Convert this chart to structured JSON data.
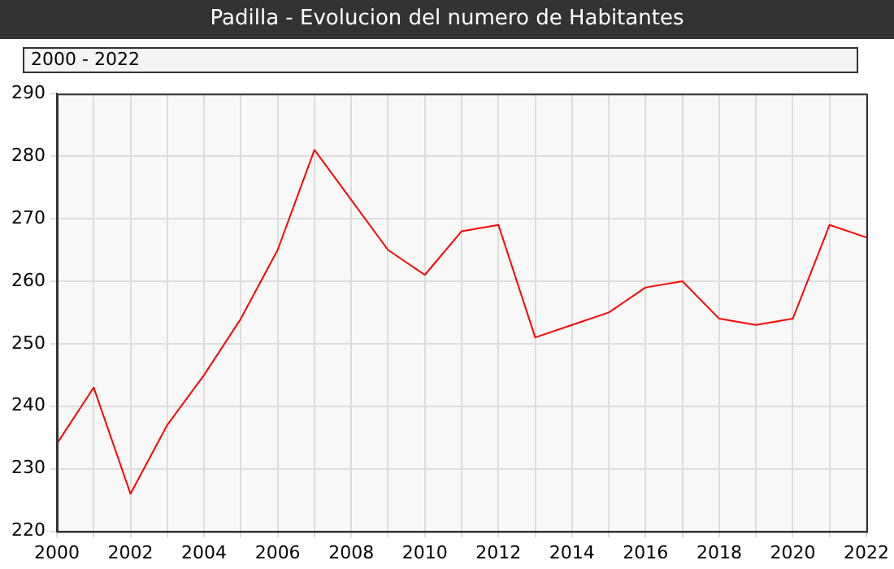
{
  "chart_data": {
    "type": "line",
    "title": "Padilla - Evolucion del numero de Habitantes",
    "subtitle": "2000 - 2022",
    "x": [
      2000,
      2001,
      2002,
      2003,
      2004,
      2005,
      2006,
      2007,
      2008,
      2009,
      2010,
      2011,
      2012,
      2013,
      2014,
      2015,
      2016,
      2017,
      2018,
      2019,
      2020,
      2021,
      2022
    ],
    "series": [
      {
        "color": "#ff0000",
        "values": [
          234,
          243,
          226,
          237,
          245,
          254,
          265,
          281,
          273,
          265,
          261,
          268,
          269,
          251,
          253,
          255,
          259,
          260,
          254,
          253,
          254,
          269,
          267
        ]
      }
    ],
    "xlim": [
      2000,
      2022
    ],
    "xticks": [
      2000,
      {
        "value": 2001,
        "label": null
      },
      2002,
      {
        "value": 2003,
        "label": null
      },
      2004,
      {
        "value": 2005,
        "label": null
      },
      2006,
      {
        "value": 2007,
        "label": null
      },
      2008,
      {
        "value": 2009,
        "label": null
      },
      2010,
      {
        "value": 2011,
        "label": null
      },
      2012,
      {
        "value": 2013,
        "label": null
      },
      2014,
      {
        "value": 2015,
        "label": null
      },
      2016,
      {
        "value": 2017,
        "label": null
      },
      2018,
      {
        "value": 2019,
        "label": null
      },
      2020,
      {
        "value": 2021,
        "label": null
      },
      2022
    ],
    "ylim": [
      220,
      290
    ],
    "yticks": [
      220,
      230,
      240,
      250,
      260,
      270,
      280,
      290
    ],
    "grid": true,
    "legend": false,
    "marker": "none",
    "line_style": "solid"
  }
}
